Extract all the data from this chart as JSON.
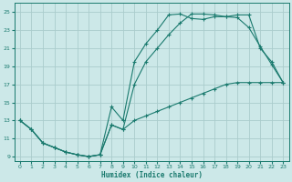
{
  "xlabel": "Humidex (Indice chaleur)",
  "bg_color": "#cce8e8",
  "grid_color": "#aacccc",
  "line_color": "#1a7a6e",
  "xlim": [
    -0.5,
    23.5
  ],
  "ylim": [
    8.5,
    26.0
  ],
  "yticks": [
    9,
    11,
    13,
    15,
    17,
    19,
    21,
    23,
    25
  ],
  "xticks": [
    0,
    1,
    2,
    3,
    4,
    5,
    6,
    7,
    8,
    9,
    10,
    11,
    12,
    13,
    14,
    15,
    16,
    17,
    18,
    19,
    20,
    21,
    22,
    23
  ],
  "line1_x": [
    0,
    1,
    2,
    3,
    4,
    5,
    6,
    7,
    8,
    9,
    10,
    11,
    12,
    13,
    14,
    15,
    16,
    17,
    18,
    19,
    20,
    21,
    22,
    23
  ],
  "line1_y": [
    13,
    12,
    10.5,
    10,
    9.5,
    9.2,
    9.0,
    9.2,
    14.5,
    13.0,
    19.5,
    21.5,
    23.0,
    24.7,
    24.8,
    24.3,
    24.2,
    24.5,
    24.5,
    24.4,
    23.3,
    21.2,
    19.2,
    17.2
  ],
  "line2_x": [
    0,
    1,
    2,
    3,
    4,
    5,
    6,
    7,
    8,
    9,
    10,
    11,
    12,
    13,
    14,
    15,
    16,
    17,
    18,
    19,
    20,
    21,
    22,
    23
  ],
  "line2_y": [
    13,
    12,
    10.5,
    10,
    9.5,
    9.2,
    9.0,
    9.2,
    12.5,
    12.0,
    17.0,
    19.5,
    21.0,
    22.5,
    23.8,
    24.8,
    24.8,
    24.7,
    24.5,
    24.7,
    24.7,
    21.0,
    19.5,
    17.2
  ],
  "line3_x": [
    0,
    1,
    2,
    3,
    4,
    5,
    6,
    7,
    8,
    9,
    10,
    11,
    12,
    13,
    14,
    15,
    16,
    17,
    18,
    19,
    20,
    21,
    22,
    23
  ],
  "line3_y": [
    13,
    12,
    10.5,
    10,
    9.5,
    9.2,
    9.0,
    9.2,
    12.5,
    12.0,
    13.0,
    13.5,
    14.0,
    14.5,
    15.0,
    15.5,
    16.0,
    16.5,
    17.0,
    17.2,
    17.2,
    17.2,
    17.2,
    17.2
  ]
}
